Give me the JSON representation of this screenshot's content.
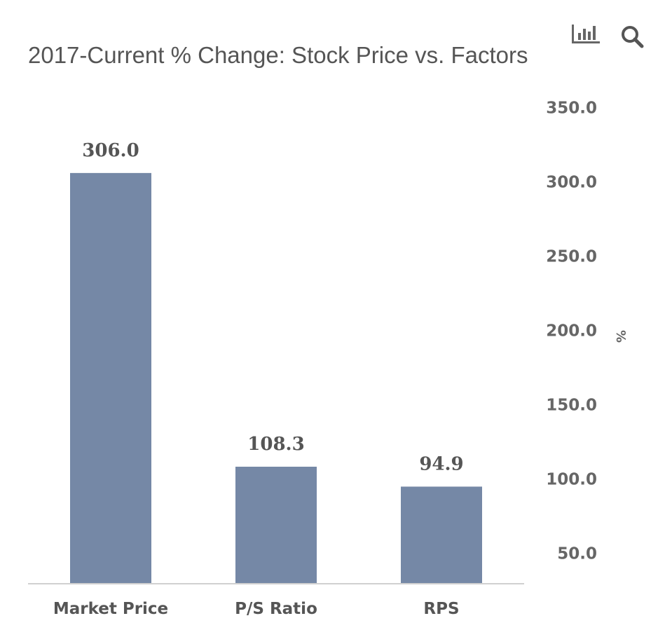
{
  "chart_data": {
    "type": "bar",
    "title": "2017-Current % Change: Stock Price vs. Factors",
    "categories": [
      "Market Price",
      "P/S Ratio",
      "RPS"
    ],
    "values": [
      306.0,
      108.3,
      94.9
    ],
    "data_labels": [
      "306.0",
      "108.3",
      "94.9"
    ],
    "xlabel": "",
    "ylabel": "%",
    "y_axis_side": "right",
    "ylim": [
      30,
      350
    ],
    "yticks": [
      50,
      100,
      150,
      200,
      250,
      300,
      350
    ],
    "ytick_labels": [
      "50.0",
      "100.0",
      "150.0",
      "200.0",
      "250.0",
      "300.0",
      "350.0"
    ],
    "bar_color": "#7588a6",
    "grid": false,
    "legend": "none"
  },
  "toolbar": {
    "chart_type_icon": "bar-chart-icon",
    "zoom_icon": "search-icon"
  }
}
